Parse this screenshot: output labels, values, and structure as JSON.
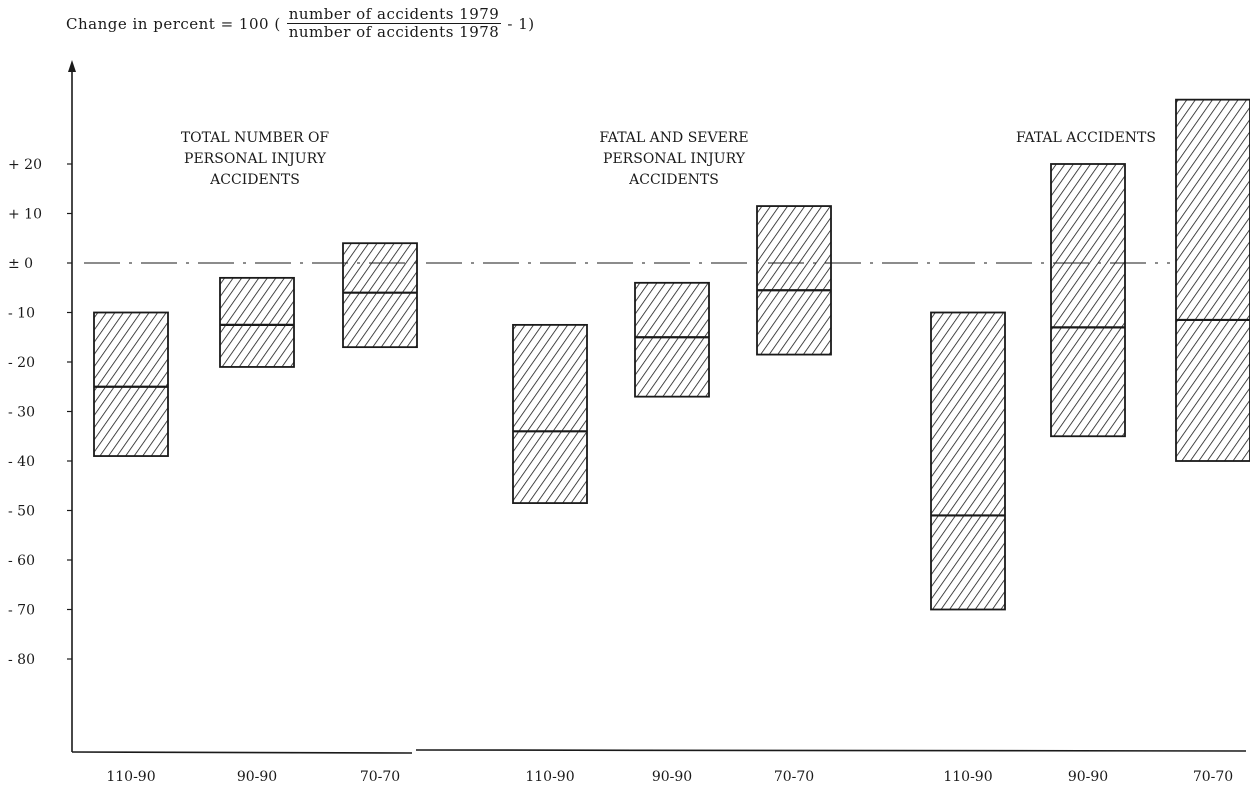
{
  "formula": {
    "prefix": "Change in percent = 100 (",
    "numerator": "number of accidents 1979",
    "denominator": "number of accidents 1978",
    "suffix": "- 1)"
  },
  "colors": {
    "ink": "#1a1a1a",
    "background": "#ffffff"
  },
  "chart_data": {
    "type": "bar",
    "subtype": "range-bar with median line (hatched)",
    "ylim": [
      -90,
      36
    ],
    "yticks": [
      {
        "value": 20,
        "label": "+ 20"
      },
      {
        "value": 10,
        "label": "+ 10"
      },
      {
        "value": 0,
        "label": "± 0"
      },
      {
        "value": -10,
        "label": "- 10"
      },
      {
        "value": -20,
        "label": "- 20"
      },
      {
        "value": -30,
        "label": "- 30"
      },
      {
        "value": -40,
        "label": "- 40"
      },
      {
        "value": -50,
        "label": "- 50"
      },
      {
        "value": -60,
        "label": "- 60"
      },
      {
        "value": -70,
        "label": "- 70"
      },
      {
        "value": -80,
        "label": "- 80"
      }
    ],
    "zero_line": "dash-dot",
    "groups": [
      {
        "title": [
          "TOTAL NUMBER OF",
          "PERSONAL INJURY",
          "ACCIDENTS"
        ],
        "bars": [
          {
            "category": "110-90",
            "low": -39,
            "mid": -25,
            "high": -10
          },
          {
            "category": "90-90",
            "low": -21,
            "mid": -12.5,
            "high": -3
          },
          {
            "category": "70-70",
            "low": -17,
            "mid": -6,
            "high": 4
          }
        ]
      },
      {
        "title": [
          "FATAL AND SEVERE",
          "PERSONAL INJURY",
          "ACCIDENTS"
        ],
        "bars": [
          {
            "category": "110-90",
            "low": -48.5,
            "mid": -34,
            "high": -12.5
          },
          {
            "category": "90-90",
            "low": -27,
            "mid": -15,
            "high": -4
          },
          {
            "category": "70-70",
            "low": -18.5,
            "mid": -5.5,
            "high": 11.5
          }
        ]
      },
      {
        "title": [
          "FATAL ACCIDENTS"
        ],
        "bars": [
          {
            "category": "110-90",
            "low": -70,
            "mid": -51,
            "high": -10
          },
          {
            "category": "90-90",
            "low": -35,
            "mid": -13,
            "high": 20
          },
          {
            "category": "70-70",
            "low": -40,
            "mid": -11.5,
            "high": 33
          }
        ]
      }
    ]
  }
}
